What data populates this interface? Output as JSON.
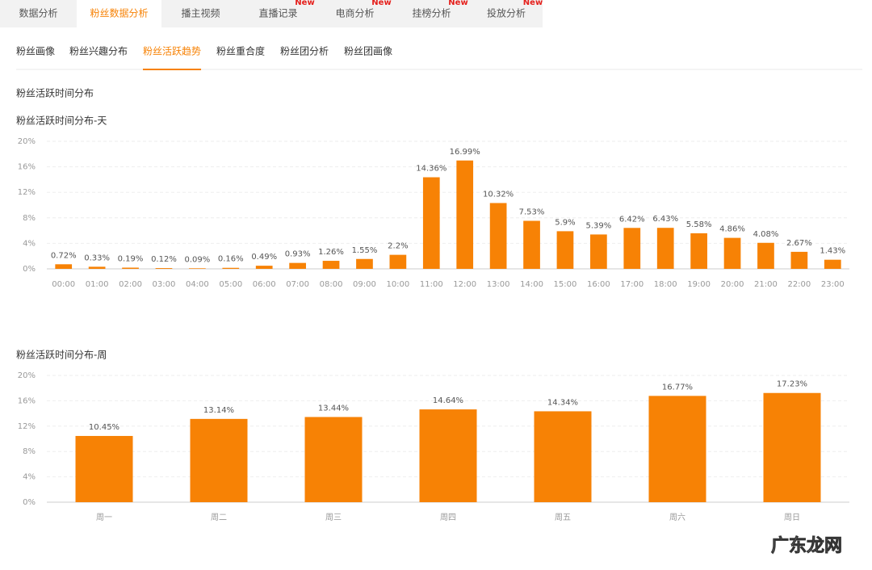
{
  "tabs": [
    {
      "label": "数据分析"
    },
    {
      "label": "粉丝数据分析"
    },
    {
      "label": "播主视频"
    },
    {
      "label": "直播记录",
      "badge": "New"
    },
    {
      "label": "电商分析",
      "badge": "New"
    },
    {
      "label": "挂榜分析",
      "badge": "New"
    },
    {
      "label": "投放分析",
      "badge": "New"
    }
  ],
  "active_tab": 1,
  "sub_tabs": [
    "粉丝画像",
    "粉丝兴趣分布",
    "粉丝活跃趋势",
    "粉丝重合度",
    "粉丝团分析",
    "粉丝团画像"
  ],
  "active_sub_tab": 2,
  "section_title": "粉丝活跃时间分布",
  "watermark": "广东龙网",
  "chart_data": [
    {
      "type": "bar",
      "title": "粉丝活跃时间分布-天",
      "color": "#f78205",
      "grid": true,
      "categories": [
        "00:00",
        "01:00",
        "02:00",
        "03:00",
        "04:00",
        "05:00",
        "06:00",
        "07:00",
        "08:00",
        "09:00",
        "10:00",
        "11:00",
        "12:00",
        "13:00",
        "14:00",
        "15:00",
        "16:00",
        "17:00",
        "18:00",
        "19:00",
        "20:00",
        "21:00",
        "22:00",
        "23:00"
      ],
      "values": [
        0.72,
        0.33,
        0.19,
        0.12,
        0.09,
        0.16,
        0.49,
        0.93,
        1.26,
        1.55,
        2.2,
        14.36,
        16.99,
        10.32,
        7.53,
        5.9,
        5.39,
        6.42,
        6.43,
        5.58,
        4.86,
        4.08,
        2.67,
        1.43
      ],
      "value_labels": [
        "0.72%",
        "0.33%",
        "0.19%",
        "0.12%",
        "0.09%",
        "0.16%",
        "0.49%",
        "0.93%",
        "1.26%",
        "1.55%",
        "2.2%",
        "14.36%",
        "16.99%",
        "10.32%",
        "7.53%",
        "5.9%",
        "5.39%",
        "6.42%",
        "6.43%",
        "5.58%",
        "4.86%",
        "4.08%",
        "2.67%",
        "1.43%"
      ],
      "ylim": [
        0,
        20
      ],
      "yticks": [
        {
          "value": 0,
          "label": "0%"
        },
        {
          "value": 4,
          "label": "4%"
        },
        {
          "value": 8,
          "label": "8%"
        },
        {
          "value": 12,
          "label": "12%"
        },
        {
          "value": 16,
          "label": "16%"
        },
        {
          "value": 20,
          "label": "20%"
        }
      ]
    },
    {
      "type": "bar",
      "title": "粉丝活跃时间分布-周",
      "color": "#f78205",
      "grid": true,
      "categories": [
        "周一",
        "周二",
        "周三",
        "周四",
        "周五",
        "周六",
        "周日"
      ],
      "values": [
        10.45,
        13.14,
        13.44,
        14.64,
        14.34,
        16.77,
        17.23
      ],
      "value_labels": [
        "10.45%",
        "13.14%",
        "13.44%",
        "14.64%",
        "14.34%",
        "16.77%",
        "17.23%"
      ],
      "ylim": [
        0,
        20
      ],
      "yticks": [
        {
          "value": 0,
          "label": "0%"
        },
        {
          "value": 4,
          "label": "4%"
        },
        {
          "value": 8,
          "label": "8%"
        },
        {
          "value": 12,
          "label": "12%"
        },
        {
          "value": 16,
          "label": "16%"
        },
        {
          "value": 20,
          "label": "20%"
        }
      ]
    }
  ]
}
